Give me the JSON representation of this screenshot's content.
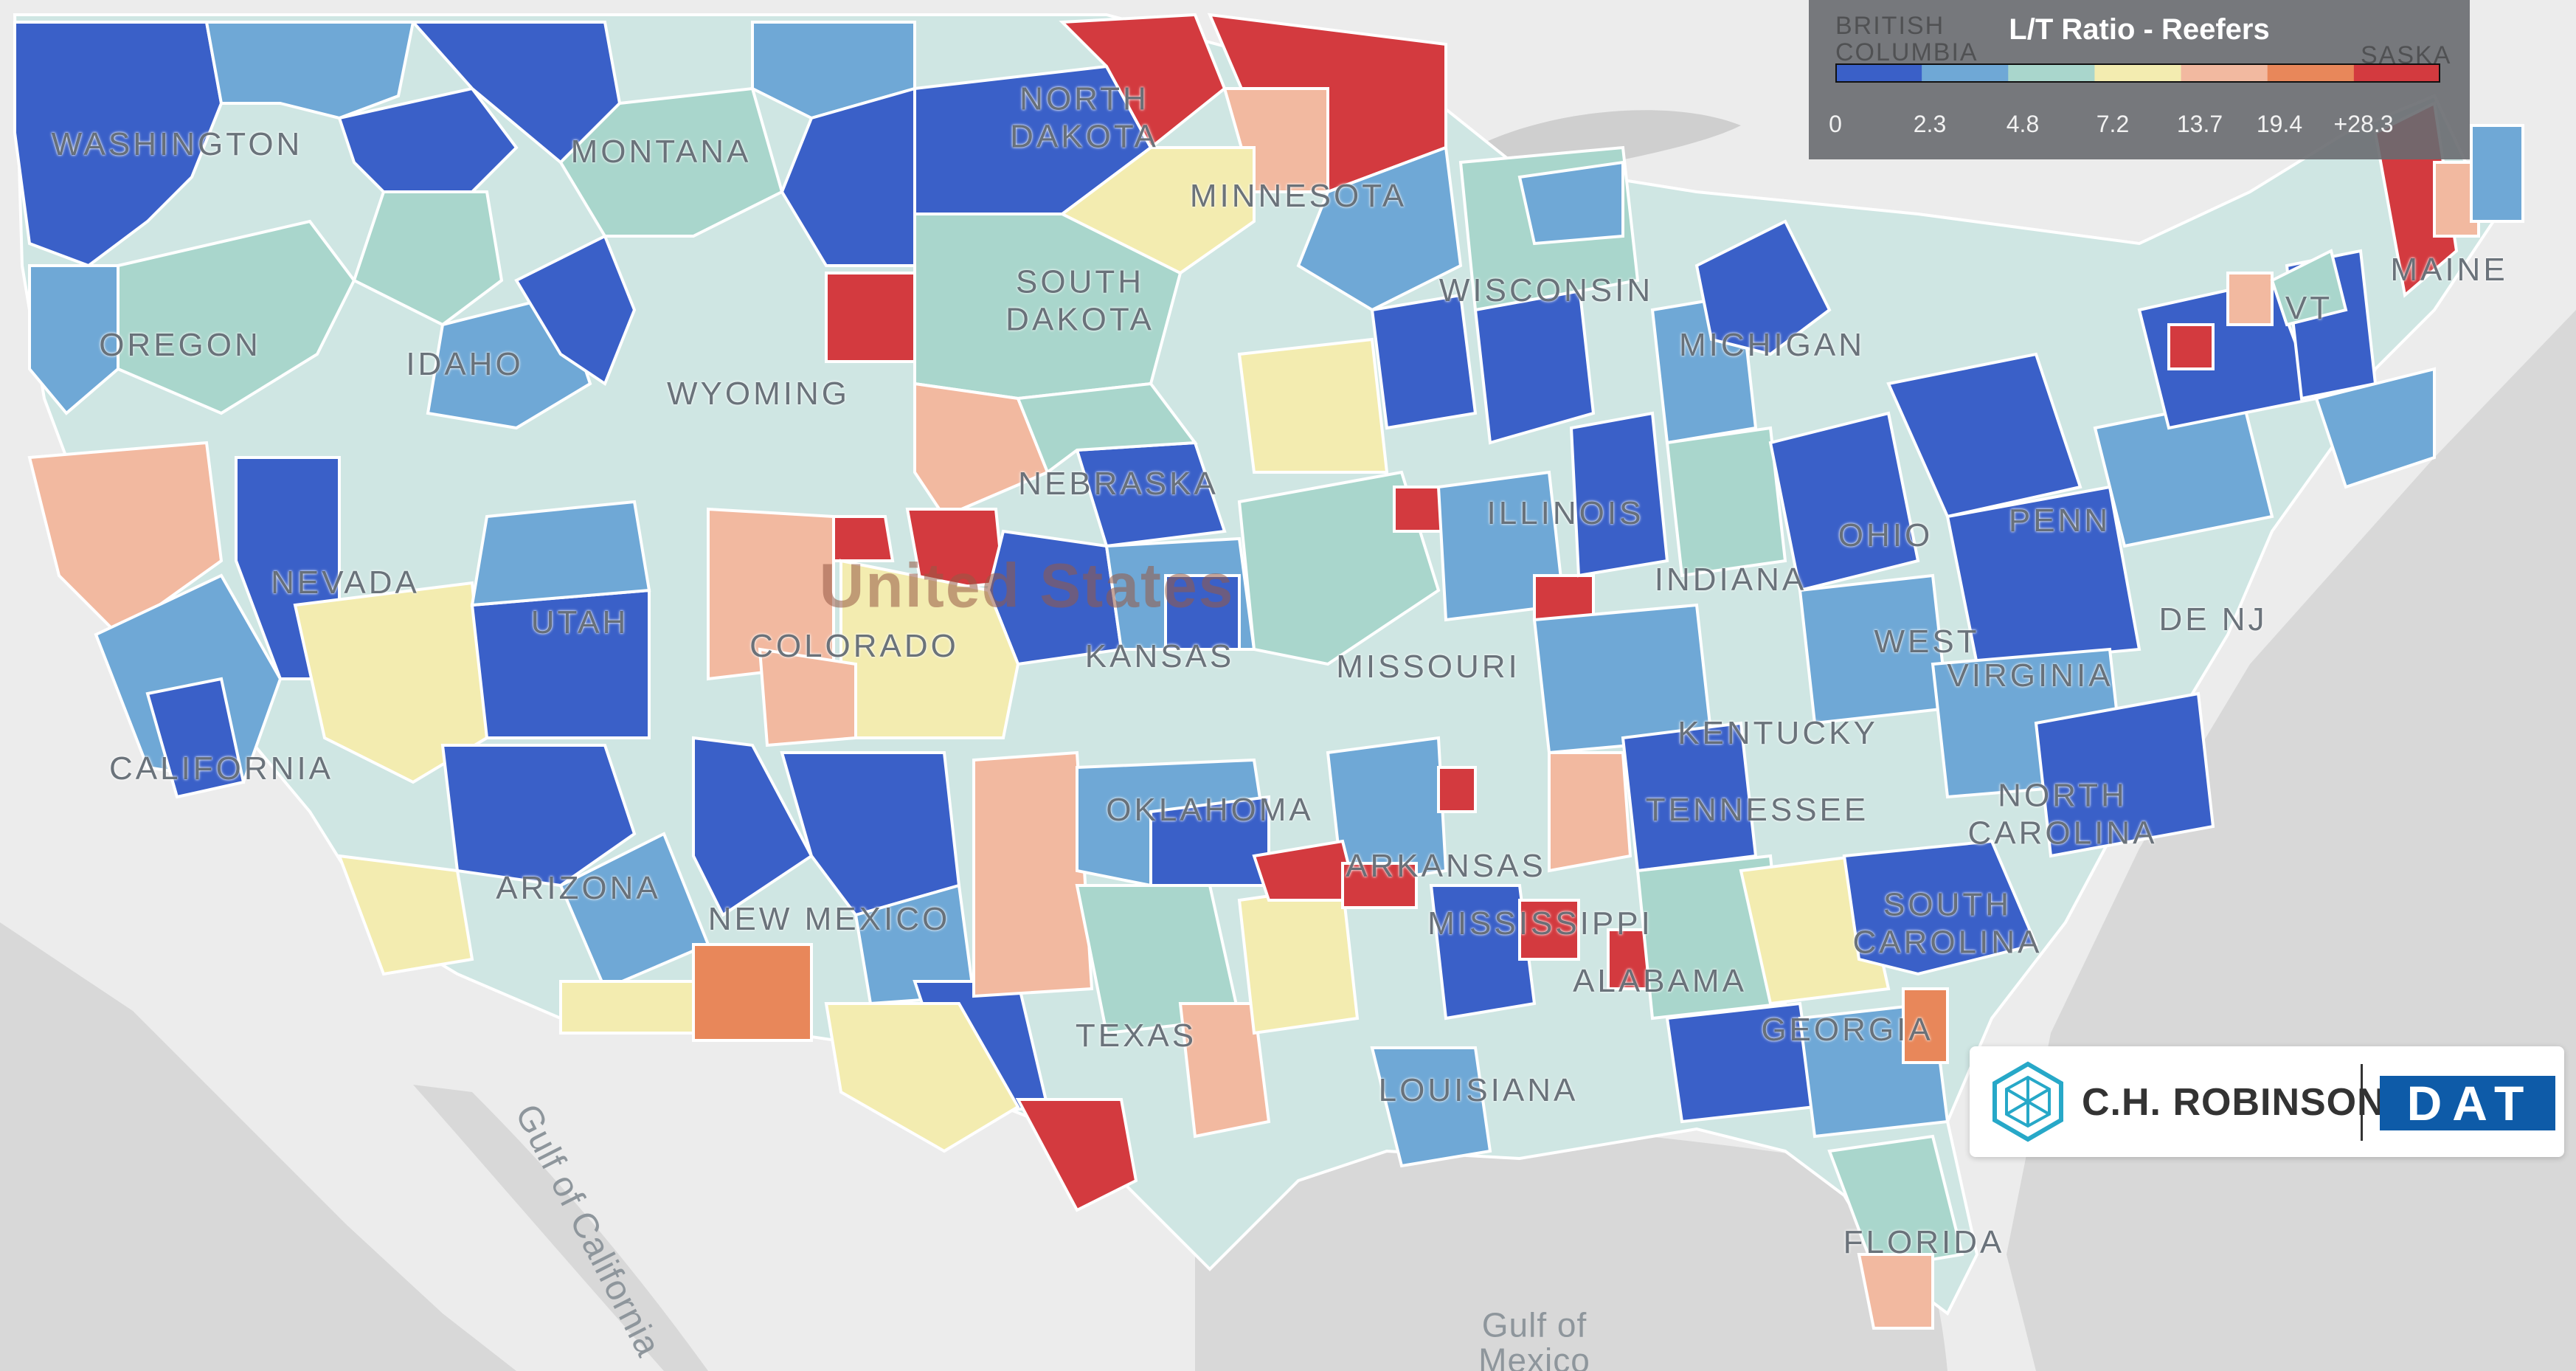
{
  "legend": {
    "title": "L/T Ratio - Reefers",
    "ticks": [
      "0",
      "2.3",
      "4.8",
      "7.2",
      "13.7",
      "19.4",
      "+28.3"
    ],
    "colors": [
      "#3a60c8",
      "#6fa8d6",
      "#a9d6cc",
      "#f3ecb0",
      "#f2b9a0",
      "#e8875a",
      "#d33a3f"
    ]
  },
  "labels": {
    "country": "United States",
    "states": {
      "washington": "WASHINGTON",
      "montana": "MONTANA",
      "north_dakota": "NORTH\nDAKOTA",
      "minnesota": "MINNESOTA",
      "south_dakota": "SOUTH\nDAKOTA",
      "wisconsin": "WISCONSIN",
      "michigan": "MICHIGAN",
      "oregon": "OREGON",
      "idaho": "IDAHO",
      "wyoming": "WYOMING",
      "nebraska": "NEBRASKA",
      "nevada": "NEVADA",
      "utah": "UTAH",
      "colorado": "COLORADO",
      "kansas": "KANSAS",
      "missouri": "MISSOURI",
      "illinois": "ILLINOIS",
      "indiana": "INDIANA",
      "california": "CALIFORNIA",
      "oklahoma": "OKLAHOMA",
      "arkansas": "ARKANSAS",
      "tennessee": "TENNESSEE",
      "kentucky": "KENTUCKY",
      "arizona": "ARIZONA",
      "new_mexico": "NEW MEXICO",
      "mississippi": "MISSISSIPPI",
      "alabama": "ALABAMA",
      "georgia": "GEORGIA",
      "texas": "TEXAS",
      "louisiana": "LOUISIANA",
      "florida": "FLORIDA",
      "south_carolina": "SOUTH\nCAROLINA",
      "north_carolina": "NORTH\nCAROLINA",
      "virginia": "VIRGINIA",
      "west_virginia": "WEST",
      "pennsylvania": "PENN",
      "ohio": "OHIO",
      "nj": "DE NJ",
      "vermont": "VT",
      "maine": "MAINE"
    },
    "foreign": {
      "british_columbia": "BRITISH\nCOLUMBIA",
      "saskatchewan": "SASKA"
    },
    "water": {
      "gulf_of_mexico": "Gulf of\nMexico",
      "gulf_of_california": "Gulf of California"
    }
  },
  "logo": {
    "company": "C.H. ROBINSON",
    "partner": "DAT"
  }
}
